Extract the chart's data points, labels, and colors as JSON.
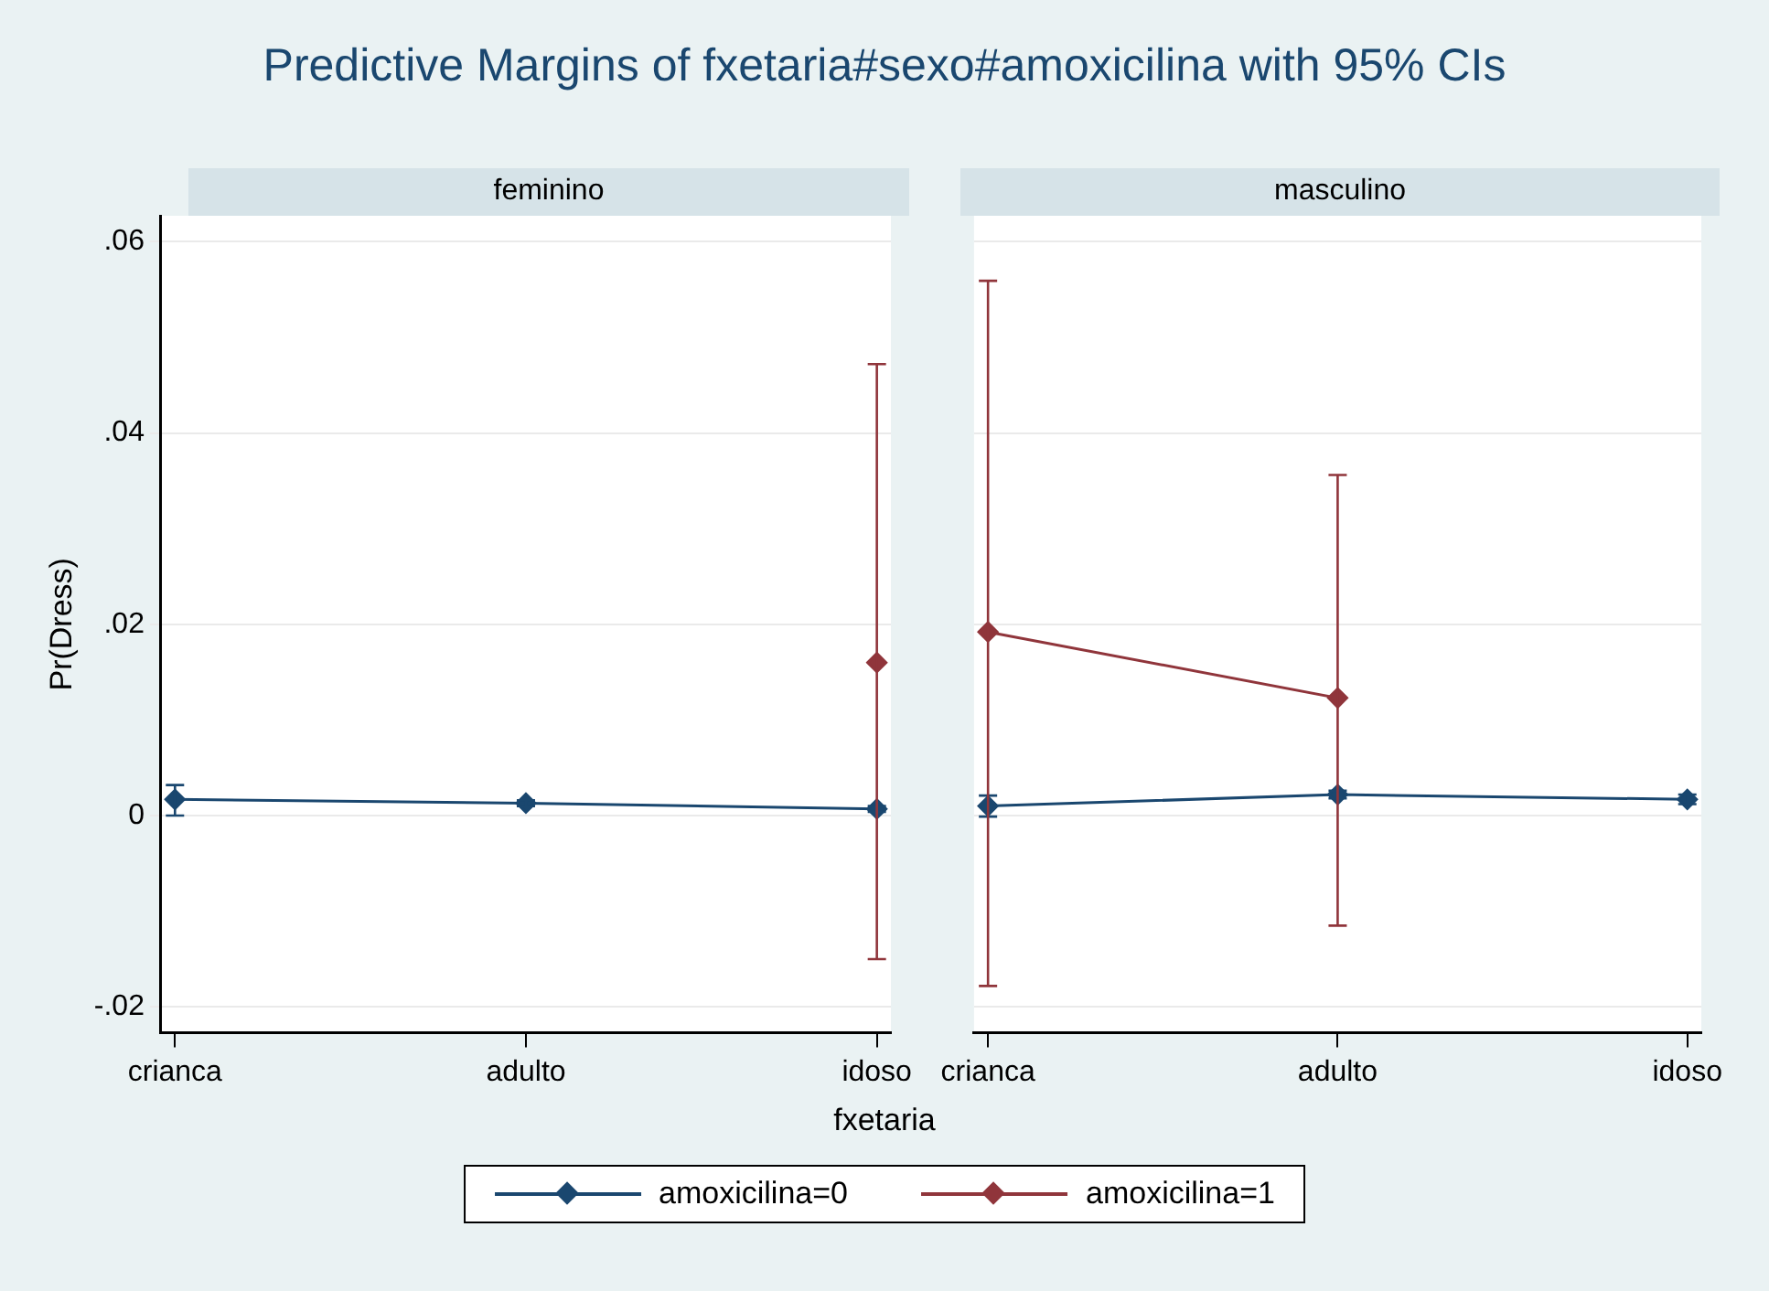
{
  "chart_data": [
    {
      "type": "line",
      "title": "Predictive Margins of fxetaria#sexo#amoxicilina with 95% CIs",
      "subtitle": "feminino",
      "xlabel": "fxetaria",
      "ylabel": "Pr(Dress)",
      "categories": [
        "crianca",
        "adulto",
        "idoso"
      ],
      "series": [
        {
          "name": "amoxicilina=0",
          "color": "#1a476f",
          "values": [
            0.0017,
            0.0013,
            0.0007
          ],
          "errors": [
            [
              0.0,
              0.0032
            ],
            [
              0.001,
              0.0016
            ],
            [
              0.0004,
              0.001
            ]
          ]
        },
        {
          "name": "amoxicilina=1",
          "color": "#90353b",
          "values": [
            null,
            null,
            0.016
          ],
          "errors": [
            null,
            null,
            [
              -0.015,
              0.0472
            ]
          ]
        }
      ],
      "ylim": [
        -0.0227,
        0.0627
      ],
      "yticks": [
        {
          "value": -0.02,
          "label": "-.02"
        },
        0,
        {
          "value": 0.02,
          "label": ".02"
        },
        {
          "value": 0.04,
          "label": ".04"
        },
        {
          "value": 0.06,
          "label": ".06"
        }
      ],
      "grid": "y",
      "legend": "bottom",
      "marker": "diamond",
      "line_style": "solid"
    },
    {
      "type": "line",
      "subtitle": "masculino",
      "categories": [
        "crianca",
        "adulto",
        "idoso"
      ],
      "series": [
        {
          "color": "#1a476f",
          "values": [
            0.001,
            0.0022,
            0.0017
          ],
          "errors": [
            [
              -0.0001,
              0.0021
            ],
            [
              0.0018,
              0.0026
            ],
            [
              0.0012,
              0.0022
            ]
          ]
        },
        {
          "color": "#90353b",
          "values": [
            0.0192,
            0.0123,
            null
          ],
          "errors": [
            [
              -0.0178,
              0.0559
            ],
            [
              -0.0115,
              0.0356
            ],
            null
          ]
        }
      ],
      "ylim": [
        -0.0227,
        0.0627
      ],
      "yticks": [
        -0.02,
        0,
        0.02,
        0.04,
        0.06
      ],
      "grid": "y",
      "tick_labels": "x",
      "marker": "diamond",
      "line_style": "solid"
    }
  ]
}
